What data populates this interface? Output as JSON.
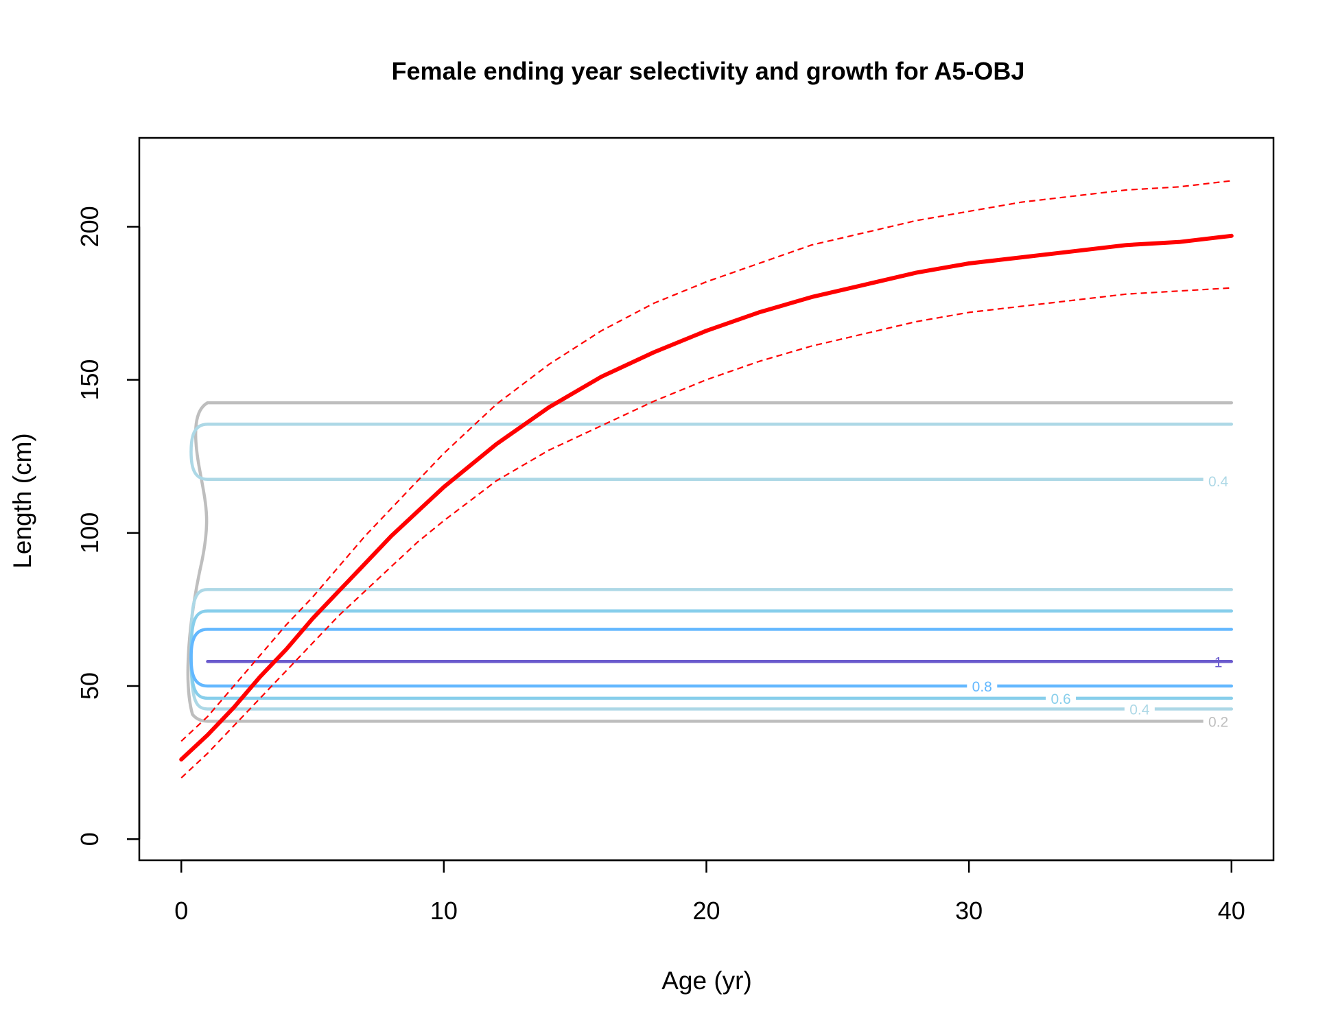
{
  "chart_data": {
    "type": "line",
    "title": "Female ending year selectivity and growth for A5-OBJ",
    "xlabel": "Age (yr)",
    "ylabel": "Length (cm)",
    "xlim": [
      -1.6,
      41.6
    ],
    "ylim": [
      -6.9,
      229
    ],
    "x_ticks": [
      0,
      10,
      20,
      30,
      40
    ],
    "y_ticks": [
      0,
      50,
      100,
      150,
      200
    ],
    "series": [
      {
        "role": "mean",
        "color": "#ff0000",
        "x": [
          0,
          1,
          2,
          3,
          4,
          5,
          6,
          7,
          8,
          9,
          10,
          12,
          14,
          16,
          18,
          20,
          22,
          24,
          26,
          28,
          30,
          32,
          34,
          36,
          38,
          40
        ],
        "y": [
          26,
          34,
          43,
          53,
          62,
          72,
          81,
          90,
          99,
          107,
          115,
          129,
          141,
          151,
          159,
          166,
          172,
          177,
          181,
          185,
          188,
          190,
          192,
          194,
          195,
          197
        ]
      },
      {
        "role": "upper",
        "color": "#ff0000",
        "x": [
          0,
          1,
          2,
          3,
          4,
          5,
          6,
          7,
          8,
          9,
          10,
          12,
          14,
          16,
          18,
          20,
          22,
          24,
          26,
          28,
          30,
          32,
          34,
          36,
          38,
          40
        ],
        "y": [
          32,
          40,
          50,
          60,
          70,
          79,
          89,
          99,
          108,
          117,
          126,
          142,
          155,
          166,
          175,
          182,
          188,
          194,
          198,
          202,
          205,
          208,
          210,
          212,
          213,
          215
        ]
      },
      {
        "role": "lower",
        "color": "#ff0000",
        "x": [
          0,
          1,
          2,
          3,
          4,
          5,
          6,
          7,
          8,
          9,
          10,
          12,
          14,
          16,
          18,
          20,
          22,
          24,
          26,
          28,
          30,
          32,
          34,
          36,
          38,
          40
        ],
        "y": [
          20,
          28,
          37,
          46,
          55,
          64,
          73,
          81,
          89,
          97,
          104,
          117,
          127,
          135,
          143,
          150,
          156,
          161,
          165,
          169,
          172,
          174,
          176,
          178,
          179,
          180
        ]
      }
    ],
    "contours": [
      {
        "level": "0.2",
        "color": "#bebebe",
        "y_low": 38.5,
        "y_high": 142.5,
        "mid_y": 100,
        "label_x": 39.5
      },
      {
        "level": "0.4",
        "color": "#add8e6",
        "y_low": 42.5,
        "y_high": 81.5,
        "label_x": 36.5
      },
      {
        "level": "0.4",
        "color": "#add8e6",
        "y_low": 117.5,
        "y_high": 135.5,
        "label_y": 117,
        "label_x": 39.5
      },
      {
        "level": "0.6",
        "color": "#87ceeb",
        "y_low": 46,
        "y_high": 74.5,
        "label_x": 33.5
      },
      {
        "level": "0.8",
        "color": "#63b8ff",
        "y_low": 50,
        "y_high": 68.5,
        "label_x": 30.5
      },
      {
        "level": "1",
        "color": "#6a5acd",
        "y_low": 58,
        "y_high": 58,
        "label_x": 39.5
      }
    ],
    "grid": false,
    "legend": "none"
  }
}
